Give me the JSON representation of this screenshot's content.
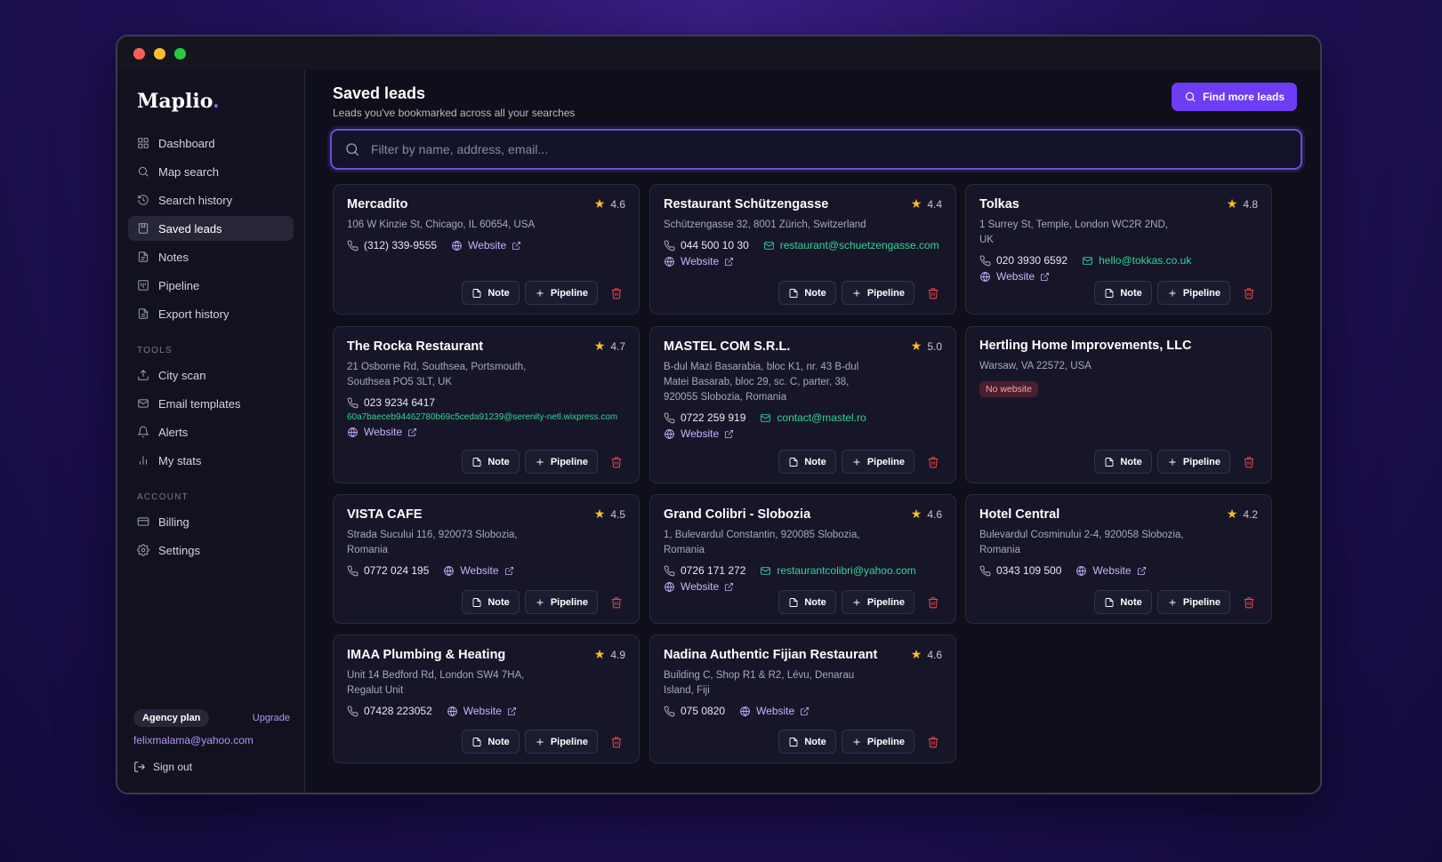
{
  "sidebar": {
    "logo": "Maplio",
    "nav": [
      {
        "label": "Dashboard",
        "icon": "grid-icon",
        "active": false
      },
      {
        "label": "Map search",
        "icon": "search-icon",
        "active": false
      },
      {
        "label": "Search history",
        "icon": "history-icon",
        "active": false
      },
      {
        "label": "Saved leads",
        "icon": "bookmark-icon",
        "active": true
      },
      {
        "label": "Notes",
        "icon": "note-icon",
        "active": false
      },
      {
        "label": "Pipeline",
        "icon": "pipeline-icon",
        "active": false
      },
      {
        "label": "Export history",
        "icon": "export-icon",
        "active": false
      }
    ],
    "tools_label": "TOOLS",
    "tools": [
      {
        "label": "City scan",
        "icon": "upload-icon"
      },
      {
        "label": "Email templates",
        "icon": "mail-icon"
      },
      {
        "label": "Alerts",
        "icon": "bell-icon"
      },
      {
        "label": "My stats",
        "icon": "bar-chart-icon"
      }
    ],
    "account_label": "ACCOUNT",
    "account": [
      {
        "label": "Billing",
        "icon": "card-icon"
      },
      {
        "label": "Settings",
        "icon": "gear-icon"
      }
    ],
    "plan": "Agency plan",
    "upgrade": "Upgrade",
    "email": "felixmalama@yahoo.com",
    "signout": "Sign out"
  },
  "header": {
    "title": "Saved leads",
    "subtitle": "Leads you've bookmarked across all your searches",
    "find_button": "Find more leads"
  },
  "search": {
    "placeholder": "Filter by name, address, email...",
    "value": ""
  },
  "actions": {
    "note": "Note",
    "pipeline": "Pipeline",
    "website": "Website",
    "no_website": "No website"
  },
  "leads": [
    {
      "name": "Mercadito",
      "rating": "4.6",
      "address": "106 W Kinzie St, Chicago, IL 60654, USA",
      "phone": "(312) 339-9555",
      "email": "",
      "website": true
    },
    {
      "name": "Restaurant Schützengasse",
      "rating": "4.4",
      "address": "Schützengasse 32, 8001 Zürich, Switzerland",
      "phone": "044 500 10 30",
      "email": "restaurant@schuetzengasse.com",
      "website": true
    },
    {
      "name": "Tolkas",
      "rating": "4.8",
      "address": "1 Surrey St, Temple, London WC2R 2ND, UK",
      "phone": "020 3930 6592",
      "email": "hello@tokkas.co.uk",
      "website": true
    },
    {
      "name": "The Rocka Restaurant",
      "rating": "4.7",
      "address": "21 Osborne Rd, Southsea, Portsmouth, Southsea PO5 3LT, UK",
      "phone": "023 9234 6417",
      "email": "60a7baeceb94462780b69c5ceda91239@serenity-netl.wixpress.com",
      "website": true
    },
    {
      "name": "MASTEL COM S.R.L.",
      "rating": "5.0",
      "address": "B-dul Mazi Basarabia, bloc K1, nr. 43 B-dul Matei Basarab, bloc 29, sc. C, parter, 38, 920055 Slobozia, Romania",
      "phone": "0722 259 919",
      "email": "contact@mastel.ro",
      "website": true
    },
    {
      "name": "Hertling Home Improvements, LLC",
      "rating": "",
      "address": "Warsaw, VA 22572, USA",
      "phone": "",
      "email": "",
      "website": false
    },
    {
      "name": "VISTA CAFE",
      "rating": "4.5",
      "address": "Strada Sucului 116, 920073 Slobozia, Romania",
      "phone": "0772 024 195",
      "email": "",
      "website": true
    },
    {
      "name": "Grand Colibri - Slobozia",
      "rating": "4.6",
      "address": "1, Bulevardul Constantin, 920085 Slobozia, Romania",
      "phone": "0726 171 272",
      "email": "restaurantcolibri@yahoo.com",
      "website": true
    },
    {
      "name": "Hotel Central",
      "rating": "4.2",
      "address": "Bulevardul Cosminului 2-4, 920058 Slobozia, Romania",
      "phone": "0343 109 500",
      "email": "",
      "website": true
    },
    {
      "name": "IMAA Plumbing & Heating",
      "rating": "4.9",
      "address": "Unit 14 Bedford Rd, London SW4 7HA, Regalut Unit",
      "phone": "07428 223052",
      "email": "",
      "website": true
    },
    {
      "name": "Nadina Authentic Fijian Restaurant",
      "rating": "4.6",
      "address": "Building C, Shop R1 & R2, Lévu, Denarau Island, Fiji",
      "phone": "075 0820",
      "email": "",
      "website": true
    }
  ]
}
